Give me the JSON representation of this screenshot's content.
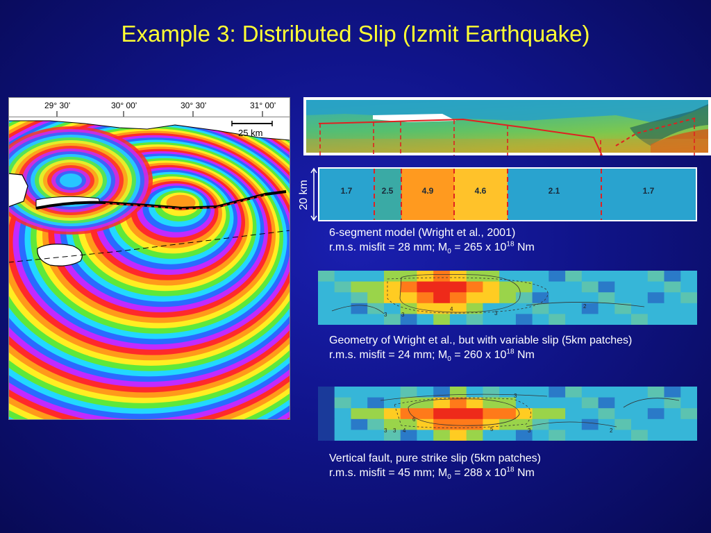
{
  "slide": {
    "title": "Example 3: Distributed Slip (Izmit Earthquake)"
  },
  "map": {
    "lon_labels": [
      "29° 30'",
      "30° 00'",
      "30° 30'",
      "31° 00'"
    ],
    "scale_label": "25 km"
  },
  "segment_model": {
    "height_label": "20 km",
    "segments": [
      {
        "slip": "1.7",
        "color": "#29a3cf"
      },
      {
        "slip": "2.5",
        "color": "#3aaaa5"
      },
      {
        "slip": "4.9",
        "color": "#ff9a1f"
      },
      {
        "slip": "4.6",
        "color": "#ffc22a"
      },
      {
        "slip": "2.1",
        "color": "#29a3cf"
      },
      {
        "slip": "1.7",
        "color": "#29a3cf"
      }
    ],
    "caption_line1": "6-segment model (Wright et al., 2001)",
    "caption_line2_prefix": "r.m.s. misfit = 28 mm; M",
    "caption_line2_sub": "0",
    "caption_line2_mid": " = 265 x 10",
    "caption_line2_sup": "18",
    "caption_line2_suffix": " Nm"
  },
  "variable_slip": {
    "contour_labels": [
      "3",
      "3",
      "4",
      "3",
      "2"
    ],
    "caption_line1": "Geometry of Wright et al., but with variable slip (5km patches)",
    "caption_line2_prefix": "r.m.s. misfit = 24 mm; M",
    "caption_line2_sub": "0",
    "caption_line2_mid": " = 260 x 10",
    "caption_line2_sup": "18",
    "caption_line2_suffix": " Nm"
  },
  "vertical_fault": {
    "contour_labels": [
      "3",
      "3",
      "3",
      "4",
      "6",
      "5",
      "3",
      "2"
    ],
    "caption_line1": "Vertical fault, pure strike slip (5km patches)",
    "caption_line2_prefix": "r.m.s. misfit = 45 mm; M",
    "caption_line2_sub": "0",
    "caption_line2_mid": " = 288 x 10",
    "caption_line2_sup": "18",
    "caption_line2_suffix": " Nm"
  }
}
